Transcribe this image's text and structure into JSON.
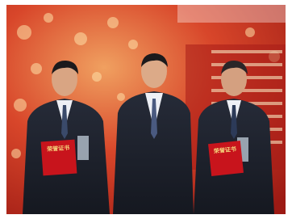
{
  "certificates": [
    {
      "text": "荣誉证书"
    },
    {
      "text": "荣誉证书"
    }
  ]
}
